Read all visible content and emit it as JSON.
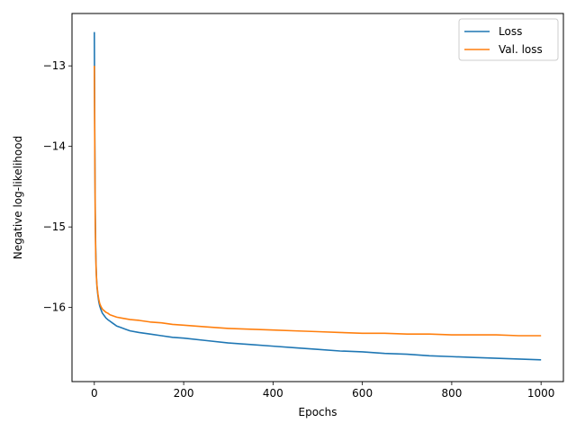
{
  "chart_data": {
    "type": "line",
    "title": "",
    "xlabel": "Epochs",
    "ylabel": "Negative log-likelihood",
    "xlim": [
      -50,
      1050
    ],
    "ylim": [
      -16.92,
      -12.35
    ],
    "xticks": [
      0,
      200,
      400,
      600,
      800,
      1000
    ],
    "yticks": [
      -13,
      -14,
      -15,
      -16
    ],
    "xtick_labels": [
      "0",
      "200",
      "400",
      "600",
      "800",
      "1000"
    ],
    "ytick_labels": [
      "−13",
      "−14",
      "−15",
      "−16"
    ],
    "grid": false,
    "legend_position": "top-right",
    "series": [
      {
        "name": "Loss",
        "color": "#1f77b4",
        "x": [
          0,
          1,
          2,
          3,
          4,
          5,
          6,
          8,
          10,
          12,
          15,
          18,
          22,
          26,
          30,
          35,
          40,
          45,
          50,
          60,
          70,
          80,
          100,
          125,
          150,
          175,
          200,
          250,
          300,
          350,
          400,
          450,
          500,
          550,
          600,
          650,
          700,
          750,
          800,
          850,
          900,
          950,
          1000
        ],
        "y": [
          -12.58,
          -13.9,
          -14.8,
          -15.25,
          -15.5,
          -15.65,
          -15.75,
          -15.85,
          -15.93,
          -15.98,
          -16.03,
          -16.07,
          -16.1,
          -16.13,
          -16.15,
          -16.17,
          -16.19,
          -16.21,
          -16.23,
          -16.25,
          -16.27,
          -16.29,
          -16.31,
          -16.33,
          -16.35,
          -16.37,
          -16.38,
          -16.41,
          -16.44,
          -16.46,
          -16.48,
          -16.5,
          -16.52,
          -16.54,
          -16.55,
          -16.57,
          -16.58,
          -16.6,
          -16.61,
          -16.62,
          -16.63,
          -16.64,
          -16.65
        ]
      },
      {
        "name": "Val. loss",
        "color": "#ff7f0e",
        "x": [
          0,
          1,
          2,
          3,
          4,
          5,
          6,
          8,
          10,
          12,
          15,
          18,
          22,
          26,
          30,
          35,
          40,
          45,
          50,
          60,
          70,
          80,
          100,
          125,
          150,
          175,
          200,
          250,
          300,
          350,
          400,
          450,
          500,
          550,
          600,
          650,
          700,
          750,
          800,
          850,
          900,
          950,
          1000
        ],
        "y": [
          -13.0,
          -14.0,
          -14.9,
          -15.3,
          -15.52,
          -15.65,
          -15.73,
          -15.83,
          -15.9,
          -15.95,
          -15.99,
          -16.02,
          -16.04,
          -16.06,
          -16.07,
          -16.09,
          -16.1,
          -16.11,
          -16.12,
          -16.13,
          -16.14,
          -16.15,
          -16.16,
          -16.18,
          -16.19,
          -16.21,
          -16.22,
          -16.24,
          -16.26,
          -16.27,
          -16.28,
          -16.29,
          -16.3,
          -16.31,
          -16.32,
          -16.32,
          -16.33,
          -16.33,
          -16.34,
          -16.34,
          -16.34,
          -16.35,
          -16.35
        ]
      }
    ]
  }
}
